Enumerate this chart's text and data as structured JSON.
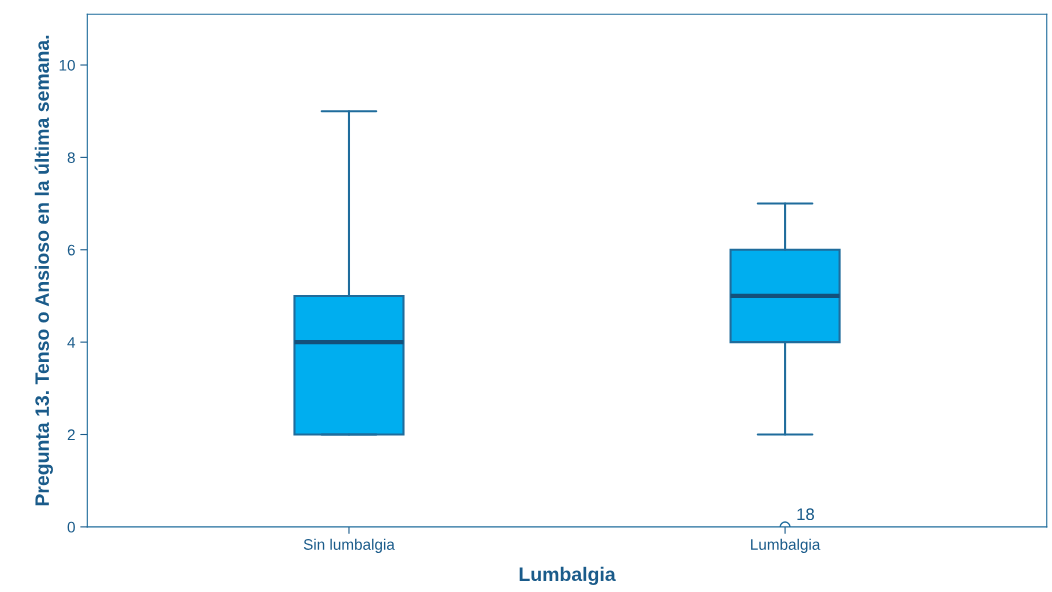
{
  "chart_data": {
    "type": "box",
    "xlabel": "Lumbalgia",
    "ylabel": "Pregunta 13. Tenso o Ansioso en la última semana.",
    "categories": [
      "Sin lumbalgia",
      "Lumbalgia"
    ],
    "boxes": [
      {
        "low": 2,
        "q1": 2,
        "median": 4,
        "q3": 5,
        "high": 9
      },
      {
        "low": 2,
        "q1": 4,
        "median": 5,
        "q3": 6,
        "high": 7,
        "outliers": [
          0
        ]
      }
    ],
    "color": "#00aeef",
    "ylim": [
      0,
      11.1
    ],
    "yticks": [
      0,
      2,
      4,
      6,
      8,
      10
    ],
    "annotations": [
      "18"
    ],
    "grid": false,
    "legend": false
  }
}
